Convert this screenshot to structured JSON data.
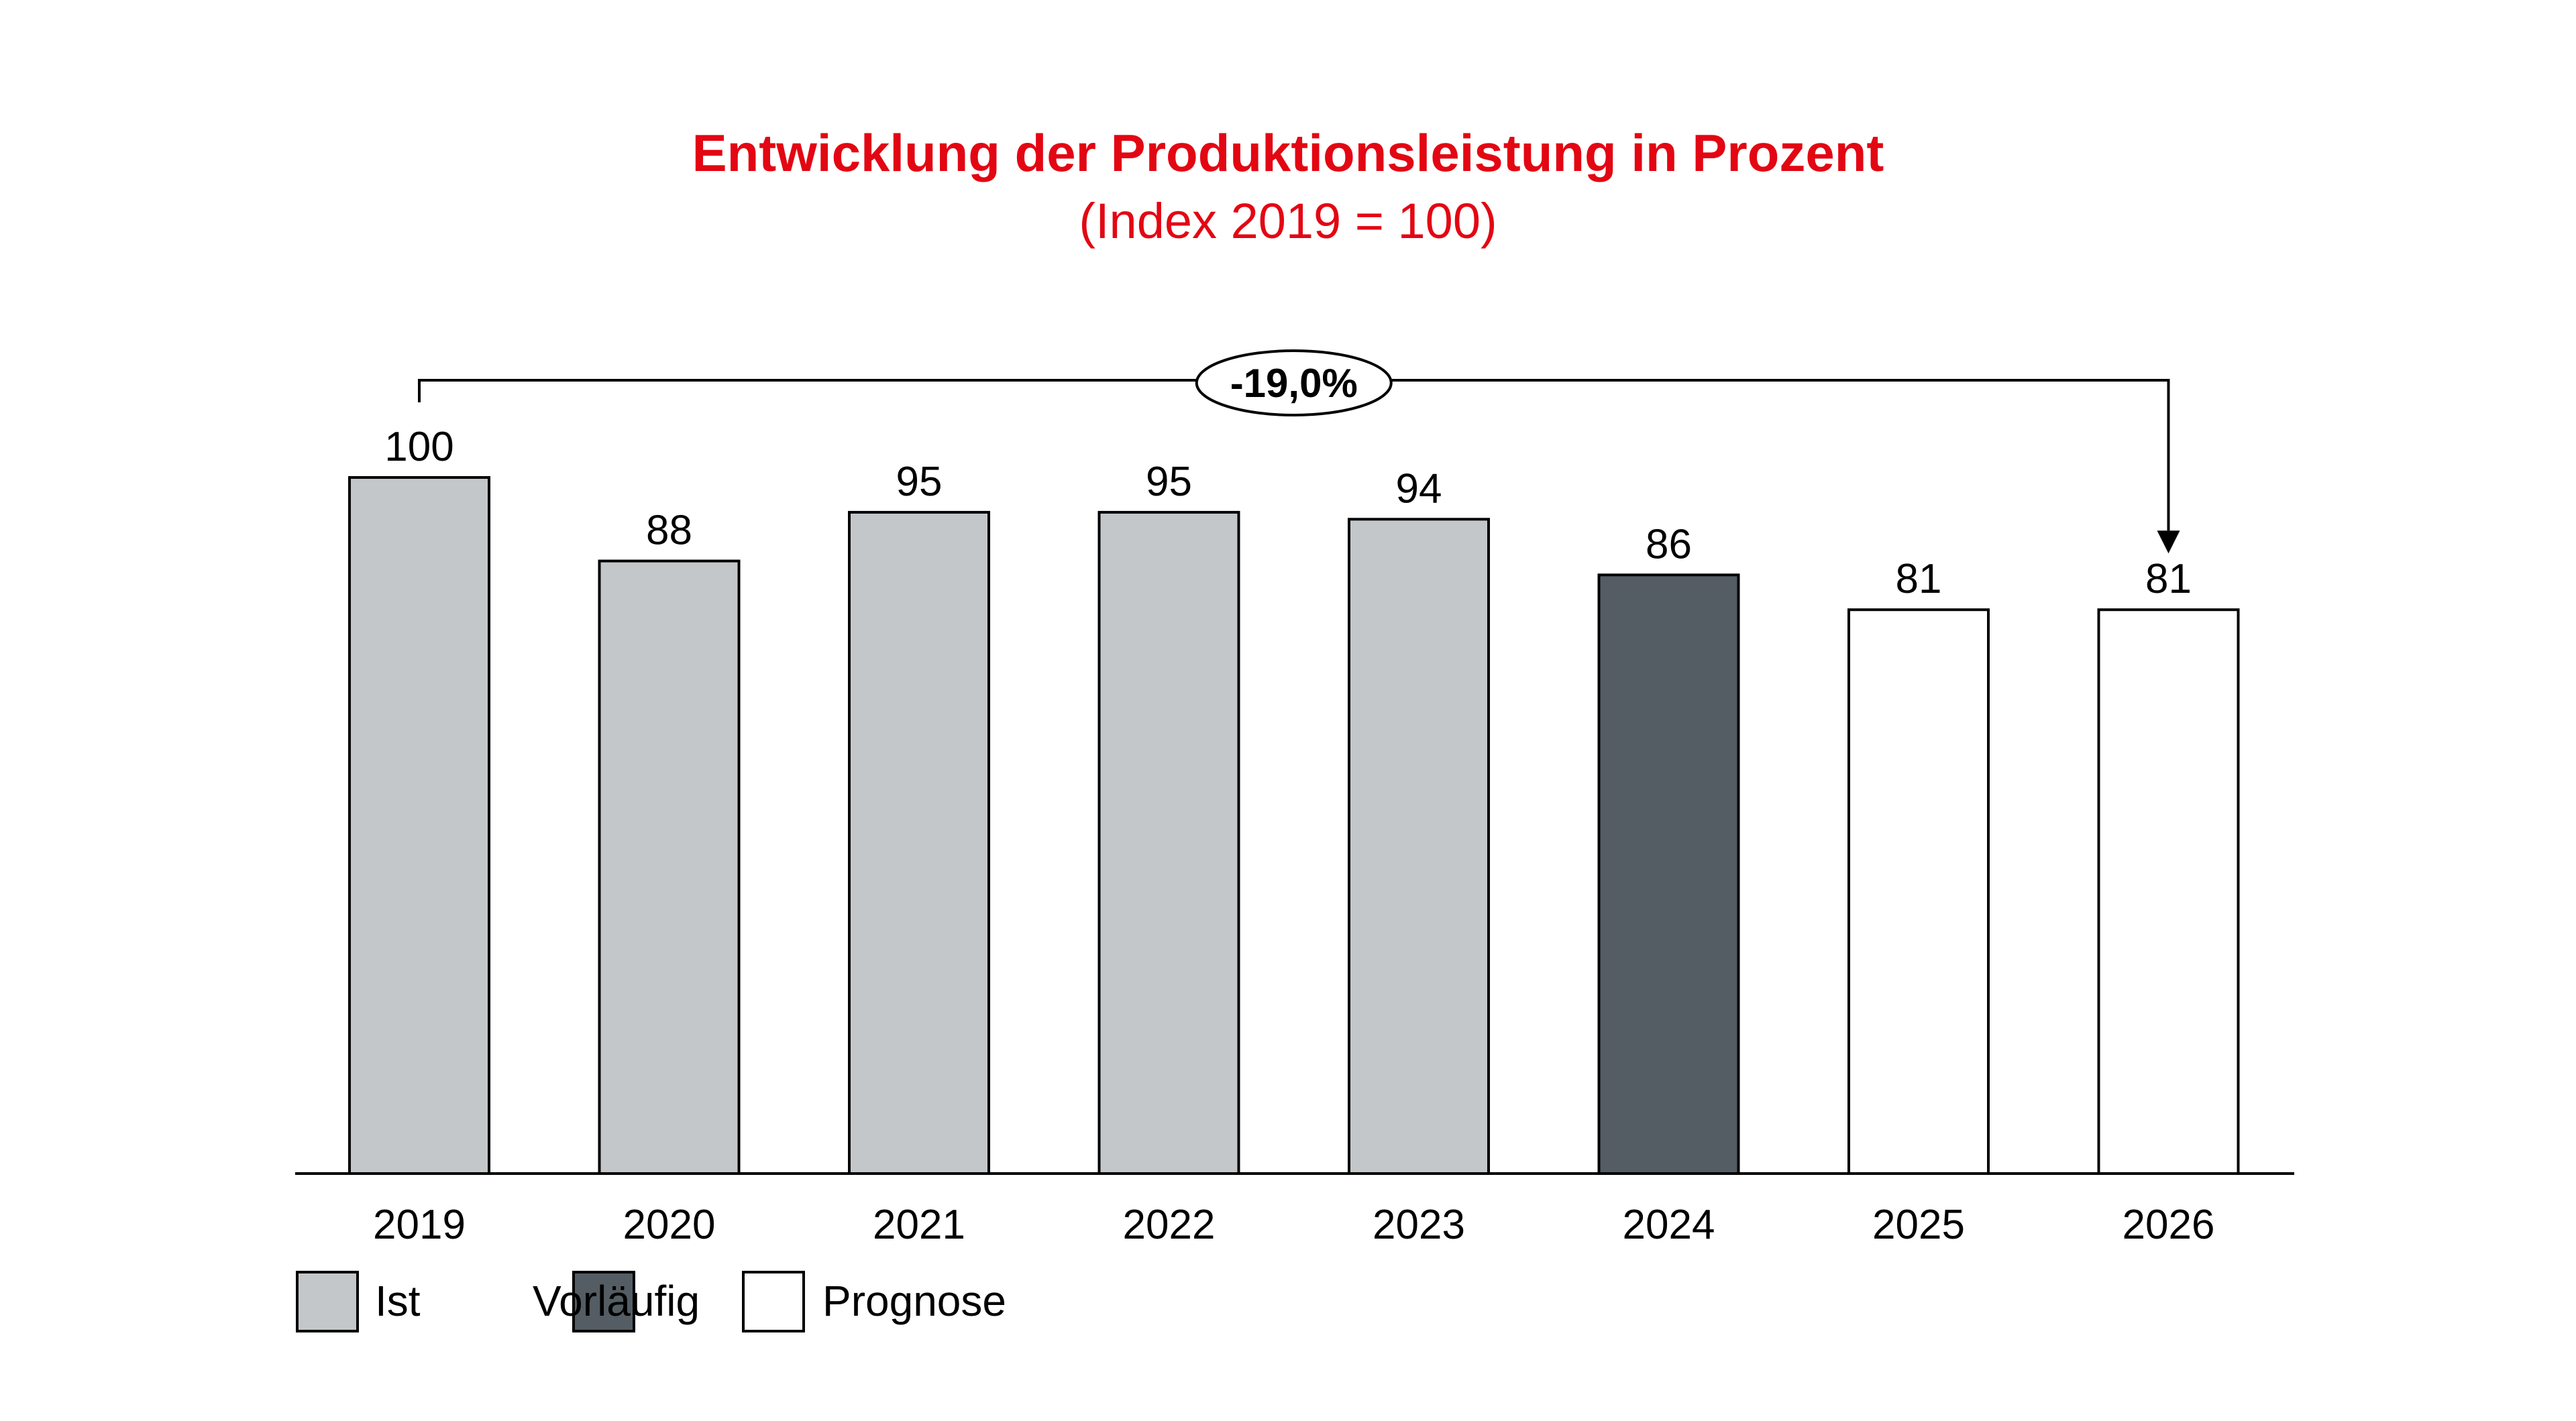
{
  "chart_data": {
    "type": "bar",
    "title": "Entwicklung der Produktionsleistung in Prozent",
    "subtitle": "(Index 2019 = 100)",
    "categories": [
      "2019",
      "2020",
      "2021",
      "2022",
      "2023",
      "2024",
      "2025",
      "2026"
    ],
    "values": [
      100,
      88,
      95,
      95,
      94,
      86,
      81,
      81
    ],
    "value_labels": [
      "100",
      "88",
      "95",
      "95",
      "94",
      "86",
      "81",
      "81"
    ],
    "status": [
      "Ist",
      "Ist",
      "Ist",
      "Ist",
      "Ist",
      "Vorläufig",
      "Prognose",
      "Prognose"
    ],
    "ylim": [
      0,
      100
    ],
    "grid": false,
    "legend": {
      "placement": "bottom-left",
      "entries": [
        {
          "label": "Ist",
          "color": "#c3c7ca"
        },
        {
          "label": "Vorläufig",
          "color": "#545d63"
        },
        {
          "label": "Prognose",
          "color": "#ffffff"
        }
      ]
    },
    "annotation": {
      "text": "-19,0%",
      "from_category": "2019",
      "to_category": "2026"
    }
  },
  "colors": {
    "title": "#e30613",
    "axis": "#000000",
    "bar_outline": "#000000"
  }
}
